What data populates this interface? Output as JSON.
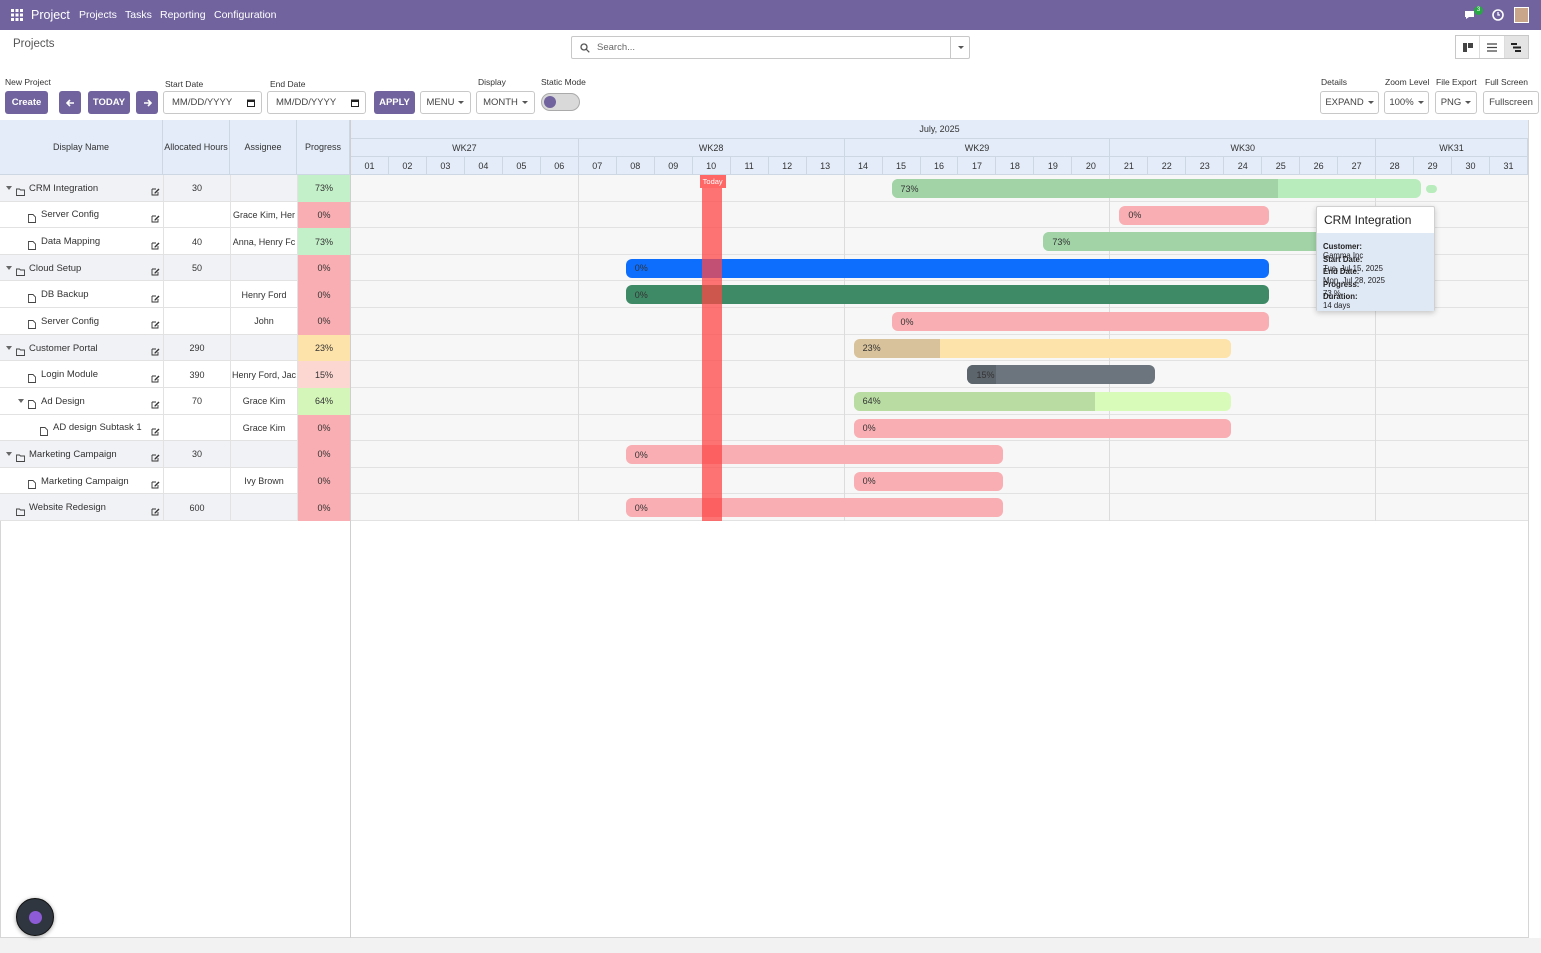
{
  "navbar": {
    "app": "Project",
    "menu": [
      "Projects",
      "Tasks",
      "Reporting",
      "Configuration"
    ],
    "badge": "3"
  },
  "control_panel": {
    "breadcrumb": "Projects",
    "search_placeholder": "Search..."
  },
  "toolbar": {
    "new_project_label": "New Project",
    "create": "Create",
    "today": "TODAY",
    "start_date_label": "Start Date",
    "end_date_label": "End Date",
    "date_placeholder": "MM/DD/YYYY",
    "apply": "APPLY",
    "menu": "MENU",
    "display_label": "Display",
    "display": "MONTH",
    "static_mode_label": "Static Mode",
    "details_label": "Details",
    "details": "EXPAND",
    "zoom_label": "Zoom Level",
    "zoom": "100%",
    "export_label": "File Export",
    "export": "PNG",
    "fullscreen_label": "Full Screen",
    "fullscreen": "Fullscreen"
  },
  "gantt": {
    "columns": [
      "Display Name",
      "Allocated Hours",
      "Assignee",
      "Progress"
    ],
    "month": "July, 2025",
    "weeks": [
      {
        "label": "WK27",
        "start": 1,
        "end": 6
      },
      {
        "label": "WK28",
        "start": 7,
        "end": 13
      },
      {
        "label": "WK29",
        "start": 14,
        "end": 20
      },
      {
        "label": "WK30",
        "start": 21,
        "end": 27
      },
      {
        "label": "WK31",
        "start": 28,
        "end": 31
      }
    ],
    "days": [
      "01",
      "02",
      "03",
      "04",
      "05",
      "06",
      "07",
      "08",
      "09",
      "10",
      "11",
      "12",
      "13",
      "14",
      "15",
      "16",
      "17",
      "18",
      "19",
      "20",
      "21",
      "22",
      "23",
      "24",
      "25",
      "26",
      "27",
      "28",
      "29",
      "30",
      "31"
    ],
    "today": {
      "day": 10,
      "label": "Today"
    },
    "rows": [
      {
        "name": "CRM Integration",
        "level": 0,
        "caret": true,
        "icon": "folder",
        "hours": 30,
        "progress": {
          "value": 73,
          "label": "73%",
          "color": "#c3f0c8"
        },
        "bar": {
          "start": 15,
          "end": 28,
          "color": "#b9ecbd",
          "fill": "#a1d3a7"
        }
      },
      {
        "name": "Server Config",
        "level": 1,
        "icon": "file",
        "assignee": "Grace Kim, Her",
        "progress": {
          "value": 0,
          "label": "0%",
          "color": "#f8aeb2"
        },
        "bar": {
          "start": 21,
          "end": 24,
          "color": "#f8aeb2",
          "fill": "#f8aeb2"
        }
      },
      {
        "name": "Data Mapping",
        "level": 1,
        "icon": "file",
        "hours": 40,
        "assignee": "Anna, Henry Fc",
        "progress": {
          "value": 73,
          "label": "73%",
          "color": "#c3f0c8"
        },
        "bar": {
          "start": 19,
          "end": 28,
          "color": "#b9ecbd",
          "fill": "#a1d3a7"
        }
      },
      {
        "name": "Cloud Setup",
        "level": 0,
        "caret": true,
        "icon": "folder",
        "hours": 50,
        "progress": {
          "value": 0,
          "label": "0%",
          "color": "#f8aeb2"
        },
        "bar": {
          "start": 8,
          "end": 24,
          "color": "#0d6efd",
          "fill": "#0d6efd"
        }
      },
      {
        "name": "DB Backup",
        "level": 1,
        "icon": "file",
        "assignee": "Henry Ford",
        "progress": {
          "value": 0,
          "label": "0%",
          "color": "#f8aeb2"
        },
        "bar": {
          "start": 8,
          "end": 24,
          "color": "#3f8a66",
          "fill": "#3f8a66"
        }
      },
      {
        "name": "Server Config",
        "level": 1,
        "icon": "file",
        "assignee": "John",
        "progress": {
          "value": 0,
          "label": "0%",
          "color": "#f8aeb2"
        },
        "bar": {
          "start": 15,
          "end": 24,
          "color": "#f8aeb2",
          "fill": "#f8aeb2"
        }
      },
      {
        "name": "Customer Portal",
        "level": 0,
        "caret": true,
        "icon": "folder",
        "hours": 290,
        "progress": {
          "value": 23,
          "label": "23%",
          "color": "#fde2a9"
        },
        "bar": {
          "start": 14,
          "end": 23,
          "color": "#fde2a9",
          "fill": "#d8c29b"
        }
      },
      {
        "name": "Login Module",
        "level": 1,
        "icon": "file",
        "hours": 390,
        "assignee": "Henry Ford, Jac",
        "progress": {
          "value": 15,
          "label": "15%",
          "color": "#fcd6d0"
        },
        "bar": {
          "start": 17,
          "end": 21,
          "color": "#6c757d",
          "fill": "#5d656c"
        }
      },
      {
        "name": "Ad Design",
        "level": 1,
        "caret": true,
        "icon": "file",
        "hours": 70,
        "assignee": "Grace Kim",
        "progress": {
          "value": 64,
          "label": "64%",
          "color": "#d4f6b9"
        },
        "bar": {
          "start": 14,
          "end": 23,
          "color": "#d9fbb9",
          "fill": "#b8dca2"
        }
      },
      {
        "name": "AD design Subtask 1",
        "level": 2,
        "icon": "file",
        "assignee": "Grace Kim",
        "progress": {
          "value": 0,
          "label": "0%",
          "color": "#f8aeb2"
        },
        "bar": {
          "start": 14,
          "end": 23,
          "color": "#f8aeb2",
          "fill": "#f8aeb2"
        }
      },
      {
        "name": "Marketing Campaign",
        "level": 0,
        "caret": true,
        "icon": "folder",
        "hours": 30,
        "progress": {
          "value": 0,
          "label": "0%",
          "color": "#f8aeb2"
        },
        "bar": {
          "start": 8,
          "end": 17,
          "color": "#f8aeb2",
          "fill": "#f8aeb2"
        }
      },
      {
        "name": "Marketing Campaign",
        "level": 1,
        "icon": "file",
        "assignee": "Ivy Brown",
        "progress": {
          "value": 0,
          "label": "0%",
          "color": "#f8aeb2"
        },
        "bar": {
          "start": 14,
          "end": 17,
          "color": "#f8aeb2",
          "fill": "#f8aeb2"
        }
      },
      {
        "name": "Website Redesign",
        "level": 0,
        "icon": "folder",
        "hours": 600,
        "progress": {
          "value": 0,
          "label": "0%",
          "color": "#f8aeb2"
        },
        "bar": {
          "start": 8,
          "end": 17,
          "color": "#f8aeb2",
          "fill": "#f8aeb2"
        }
      }
    ],
    "tooltip": {
      "title": "CRM Integration",
      "fields": [
        {
          "label": "Customer:",
          "value": "Gamma Inc"
        },
        {
          "label": "Start Date:",
          "value": "Tue, Jul 15, 2025"
        },
        {
          "label": "End Date:",
          "value": "Mon, Jul 28, 2025"
        },
        {
          "label": "Progress:",
          "value": "73 %"
        },
        {
          "label": "Duration:",
          "value": "14 days"
        }
      ]
    }
  }
}
